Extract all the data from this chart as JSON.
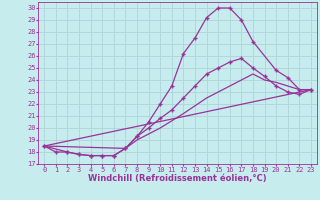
{
  "xlabel": "Windchill (Refroidissement éolien,°C)",
  "xlim": [
    -0.5,
    23.5
  ],
  "ylim": [
    17,
    30.5
  ],
  "xticks": [
    0,
    1,
    2,
    3,
    4,
    5,
    6,
    7,
    8,
    9,
    10,
    11,
    12,
    13,
    14,
    15,
    16,
    17,
    18,
    19,
    20,
    21,
    22,
    23
  ],
  "yticks": [
    17,
    18,
    19,
    20,
    21,
    22,
    23,
    24,
    25,
    26,
    27,
    28,
    29,
    30
  ],
  "bg_color": "#c6ecee",
  "line_color": "#993399",
  "grid_color": "#b0d8dc",
  "line1_x": [
    0,
    1,
    2,
    3,
    4,
    5,
    6,
    7,
    8,
    9,
    10,
    11,
    12,
    13,
    14,
    15,
    16,
    17,
    18,
    20,
    21,
    22,
    23
  ],
  "line1_y": [
    18.5,
    18.0,
    18.0,
    17.8,
    17.7,
    17.7,
    17.7,
    18.3,
    19.3,
    20.5,
    22.0,
    23.5,
    26.2,
    27.5,
    29.2,
    30.0,
    30.0,
    29.0,
    27.2,
    24.8,
    24.2,
    23.2,
    23.2
  ],
  "line2_x": [
    0,
    2,
    3,
    4,
    5,
    6,
    7,
    8,
    9,
    10,
    11,
    12,
    13,
    14,
    15,
    16,
    17,
    18,
    19,
    20,
    21,
    22,
    23
  ],
  "line2_y": [
    18.5,
    18.0,
    17.8,
    17.7,
    17.7,
    17.7,
    18.3,
    19.3,
    20.0,
    20.8,
    21.5,
    22.5,
    23.5,
    24.5,
    25.0,
    25.5,
    25.8,
    25.0,
    24.3,
    23.5,
    23.0,
    22.8,
    23.2
  ],
  "line3_x": [
    0,
    23
  ],
  "line3_y": [
    18.5,
    23.2
  ],
  "line4_x": [
    0,
    7,
    8,
    10,
    12,
    14,
    16,
    17,
    18,
    19,
    20,
    21,
    22,
    23
  ],
  "line4_y": [
    18.5,
    18.3,
    19.0,
    20.0,
    21.2,
    22.5,
    23.5,
    24.0,
    24.5,
    24.0,
    23.8,
    23.5,
    23.2,
    23.2
  ],
  "markersize": 2.5,
  "linewidth": 0.9,
  "tick_fontsize": 5.0,
  "xlabel_fontsize": 6.0
}
